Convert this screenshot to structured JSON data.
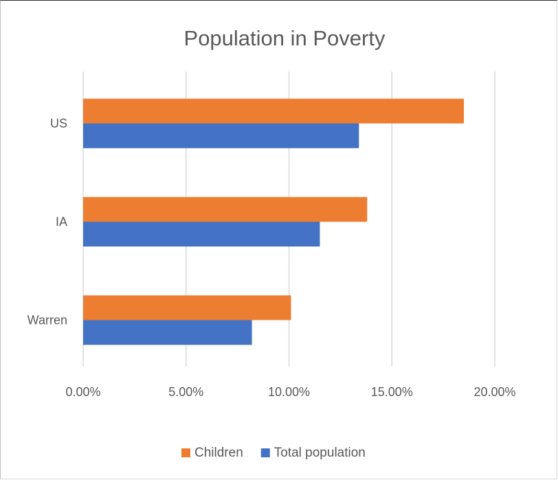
{
  "chart_data": {
    "type": "bar",
    "orientation": "horizontal",
    "title": "Population in Poverty",
    "xlabel": "",
    "ylabel": "",
    "categories": [
      "US",
      "IA",
      "Warren"
    ],
    "series": [
      {
        "name": "Children",
        "color": "#ED7D31",
        "values": [
          0.185,
          0.138,
          0.101
        ]
      },
      {
        "name": "Total population",
        "color": "#4472C4",
        "values": [
          0.134,
          0.115,
          0.082
        ]
      }
    ],
    "xlim": [
      0,
      0.2
    ],
    "x_ticks": [
      0,
      0.05,
      0.1,
      0.15,
      0.2
    ],
    "x_tick_labels": [
      "0.00%",
      "5.00%",
      "10.00%",
      "15.00%",
      "20.00%"
    ],
    "grid": true,
    "legend": "bottom"
  }
}
